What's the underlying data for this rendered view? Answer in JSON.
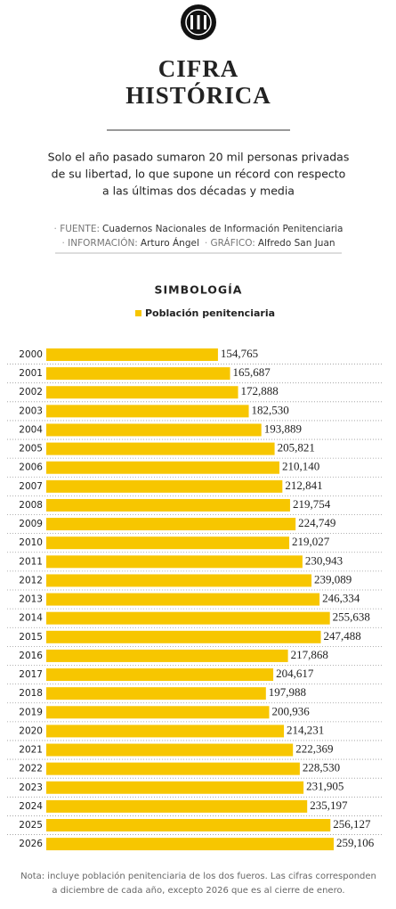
{
  "header": {
    "title": [
      "CIFRA",
      "HISTÓRICA"
    ],
    "subtitle": [
      "Solo el año pasado sumaron 20 mil personas privadas",
      "de su libertad, lo que supone un récord con respecto",
      "a las últimas dos décadas y media"
    ],
    "credits": [
      [
        {
          "label": "FUENTE:",
          "text": "Cuadernos Nacionales de Información Penitenciaria"
        }
      ],
      [
        {
          "label": "INFORMACIÓN:",
          "text": "Arturo Ángel"
        },
        {
          "label": "GRÁFICO:",
          "text": "Alfredo San Juan"
        }
      ]
    ]
  },
  "chart_data": {
    "type": "bar",
    "orientation": "horizontal",
    "legend_title": "SIMBOLOGÍA",
    "categories": [
      "2000",
      "2001",
      "2002",
      "2003",
      "2004",
      "2005",
      "2006",
      "2007",
      "2008",
      "2009",
      "2010",
      "2011",
      "2012",
      "2013",
      "2014",
      "2015",
      "2016",
      "2017",
      "2018",
      "2019",
      "2020",
      "2021",
      "2022",
      "2023",
      "2024",
      "2025",
      "2026"
    ],
    "series": [
      {
        "name": "Población penitenciaria",
        "color": "#f7c600",
        "values": [
          154765,
          165687,
          172888,
          182530,
          193889,
          205821,
          210140,
          212841,
          219754,
          224749,
          219027,
          230943,
          239089,
          246334,
          255638,
          247488,
          217868,
          204617,
          197988,
          200936,
          214231,
          222369,
          228530,
          231905,
          235197,
          256127,
          259106
        ],
        "value_labels": [
          "154,765",
          "165,687",
          "172,888",
          "182,530",
          "193,889",
          "205,821",
          "210,140",
          "212,841",
          "219,754",
          "224,749",
          "219,027",
          "230,943",
          "239,089",
          "246,334",
          "255,638",
          "247,488",
          "217,868",
          "204,617",
          "197,988",
          "200,936",
          "214,231",
          "222,369",
          "228,530",
          "231,905",
          "235,197",
          "256,127",
          "259,106"
        ]
      }
    ]
  },
  "note": [
    "Nota: incluye población penitenciaria de los dos fueros. Las cifras corresponden",
    "a diciembre de cada año, excepto 2026 que es al cierre de enero."
  ]
}
